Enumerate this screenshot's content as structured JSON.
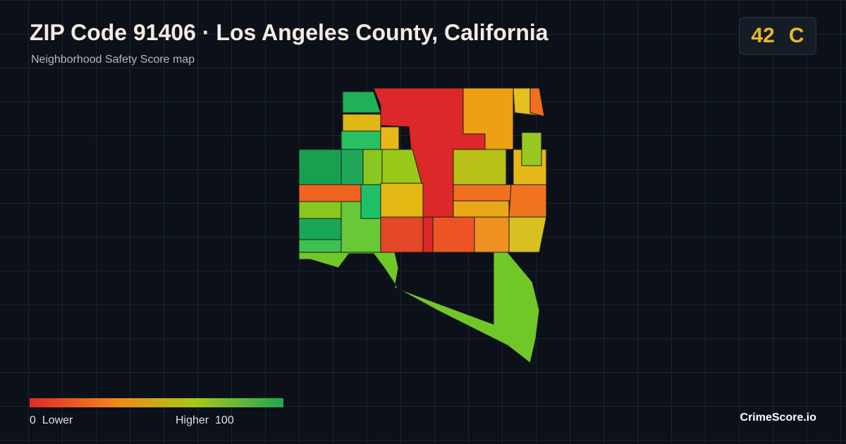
{
  "header": {
    "title": "ZIP Code 91406 · Los Angeles County, California",
    "subtitle": "Neighborhood Safety Score map"
  },
  "score": {
    "value": "42",
    "grade": "C"
  },
  "legend": {
    "min": "0",
    "min_label": "Lower",
    "max_label": "Higher",
    "max": "100"
  },
  "brand": "CrimeScore.io"
}
